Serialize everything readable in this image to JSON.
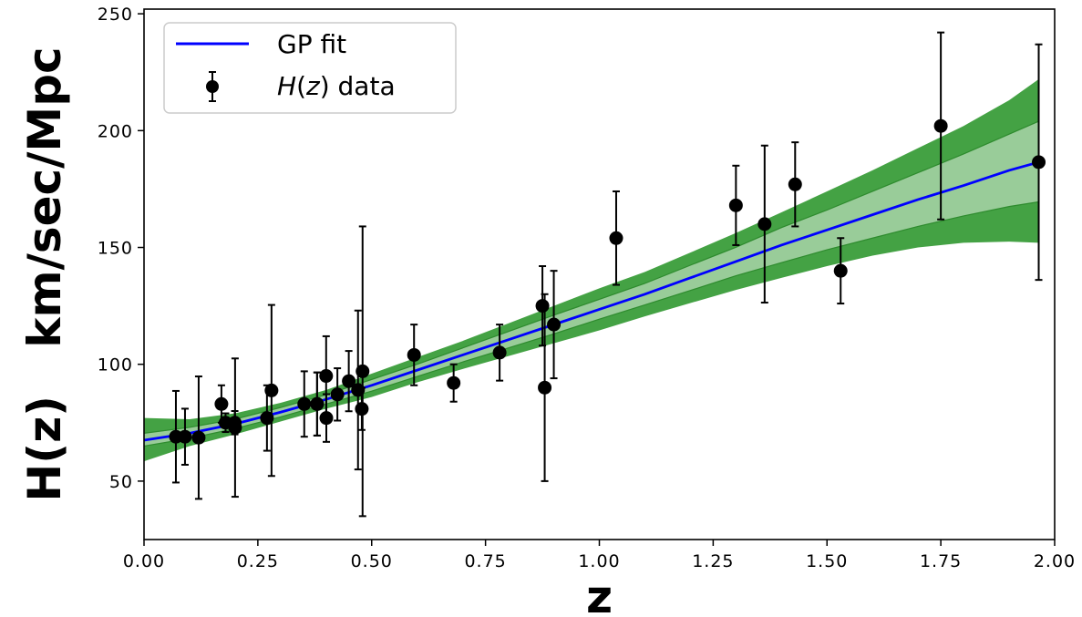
{
  "chart_data": {
    "type": "line",
    "xlabel": "z",
    "ylabel": "H(z)   km/sec/Mpc",
    "xlim": [
      0.0,
      2.0
    ],
    "ylim": [
      25,
      252
    ],
    "xticks": [
      "0.00",
      "0.25",
      "0.50",
      "0.75",
      "1.00",
      "1.25",
      "1.50",
      "1.75",
      "2.00"
    ],
    "xtick_values": [
      0.0,
      0.25,
      0.5,
      0.75,
      1.0,
      1.25,
      1.5,
      1.75,
      2.0
    ],
    "yticks": [
      "50",
      "100",
      "150",
      "200",
      "250"
    ],
    "ytick_values": [
      50,
      100,
      150,
      200,
      250
    ],
    "grid": false,
    "legend": {
      "placement": "top-left",
      "entries": [
        {
          "label": "GP fit",
          "kind": "line",
          "color": "#0000ff"
        },
        {
          "label": "H(z) data",
          "label_italic": "H",
          "label_rest_1": "(",
          "label_italic_2": "z",
          "label_rest_2": ") data",
          "kind": "errorbar",
          "color": "#000000"
        }
      ]
    },
    "colors": {
      "fit": "#0000ff",
      "band_1sigma": "#99cc99",
      "band_2sigma": "#44a244",
      "band_edge": "#2e8b2e",
      "data": "#000000"
    },
    "series": [
      {
        "name": "GP fit",
        "kind": "line",
        "x": [
          0.0,
          0.1,
          0.2,
          0.3,
          0.4,
          0.5,
          0.6,
          0.7,
          0.8,
          0.9,
          1.0,
          1.1,
          1.2,
          1.3,
          1.4,
          1.5,
          1.6,
          1.7,
          1.8,
          1.9,
          1.965
        ],
        "y": [
          67.5,
          70.5,
          74.5,
          79.5,
          85,
          91,
          97.5,
          104,
          110.5,
          117,
          123.5,
          130,
          137,
          144,
          151,
          157.5,
          164,
          170.5,
          176.5,
          183,
          186.5
        ],
        "sigma1_lower": [
          65,
          68.3,
          72.5,
          77.5,
          83,
          88.5,
          94.8,
          101,
          107,
          113,
          119.3,
          125.4,
          131.6,
          137.9,
          143.5,
          149,
          154,
          159,
          163.5,
          167.5,
          169.5
        ],
        "sigma1_upper": [
          70.5,
          73,
          76.5,
          81.5,
          87,
          93.5,
          100,
          107,
          114,
          121,
          127.8,
          134.6,
          142.4,
          150.1,
          158.5,
          166,
          174,
          182,
          190,
          198.5,
          204
        ],
        "sigma2_lower": [
          58.5,
          65,
          70,
          75.5,
          81,
          86,
          92.3,
          98,
          103.5,
          109,
          114.5,
          120.5,
          126.2,
          131.8,
          137,
          142,
          146.5,
          150,
          152,
          152.5,
          152
        ],
        "sigma2_upper": [
          77,
          76.5,
          79,
          83.5,
          89,
          96,
          103,
          110,
          117.5,
          125,
          132.5,
          139.5,
          147.8,
          156.2,
          165,
          174,
          183,
          192.5,
          202,
          213,
          222
        ]
      },
      {
        "name": "H(z) data",
        "kind": "errorbar",
        "points": [
          {
            "x": 0.07,
            "y": 69,
            "err": 19.6
          },
          {
            "x": 0.09,
            "y": 69,
            "err": 12
          },
          {
            "x": 0.12,
            "y": 68.6,
            "err": 26.2
          },
          {
            "x": 0.17,
            "y": 83,
            "err": 8
          },
          {
            "x": 0.1791,
            "y": 75,
            "err": 4
          },
          {
            "x": 0.1993,
            "y": 75,
            "err": 5
          },
          {
            "x": 0.2,
            "y": 72.9,
            "err": 29.6
          },
          {
            "x": 0.27,
            "y": 77,
            "err": 14
          },
          {
            "x": 0.28,
            "y": 88.8,
            "err": 36.6
          },
          {
            "x": 0.3519,
            "y": 83,
            "err": 14
          },
          {
            "x": 0.38,
            "y": 83,
            "err": 13.5
          },
          {
            "x": 0.3802,
            "y": 83,
            "err": 13.5
          },
          {
            "x": 0.4,
            "y": 95,
            "err": 17
          },
          {
            "x": 0.4004,
            "y": 77,
            "err": 10.2
          },
          {
            "x": 0.4247,
            "y": 87.1,
            "err": 11.2
          },
          {
            "x": 0.4497,
            "y": 92.8,
            "err": 12.9
          },
          {
            "x": 0.47,
            "y": 89,
            "err": 34
          },
          {
            "x": 0.4783,
            "y": 80.9,
            "err": 9
          },
          {
            "x": 0.48,
            "y": 97,
            "err": 62
          },
          {
            "x": 0.593,
            "y": 104,
            "err": 13
          },
          {
            "x": 0.68,
            "y": 92,
            "err": 8
          },
          {
            "x": 0.781,
            "y": 105,
            "err": 12
          },
          {
            "x": 0.875,
            "y": 125,
            "err": 17
          },
          {
            "x": 0.88,
            "y": 90,
            "err": 40
          },
          {
            "x": 0.9,
            "y": 117,
            "err": 23
          },
          {
            "x": 1.037,
            "y": 154,
            "err": 20
          },
          {
            "x": 1.3,
            "y": 168,
            "err": 17
          },
          {
            "x": 1.363,
            "y": 160,
            "err": 33.6
          },
          {
            "x": 1.43,
            "y": 177,
            "err": 18
          },
          {
            "x": 1.53,
            "y": 140,
            "err": 14
          },
          {
            "x": 1.75,
            "y": 202,
            "err": 40
          },
          {
            "x": 1.965,
            "y": 186.5,
            "err": 50.4
          }
        ]
      }
    ]
  }
}
